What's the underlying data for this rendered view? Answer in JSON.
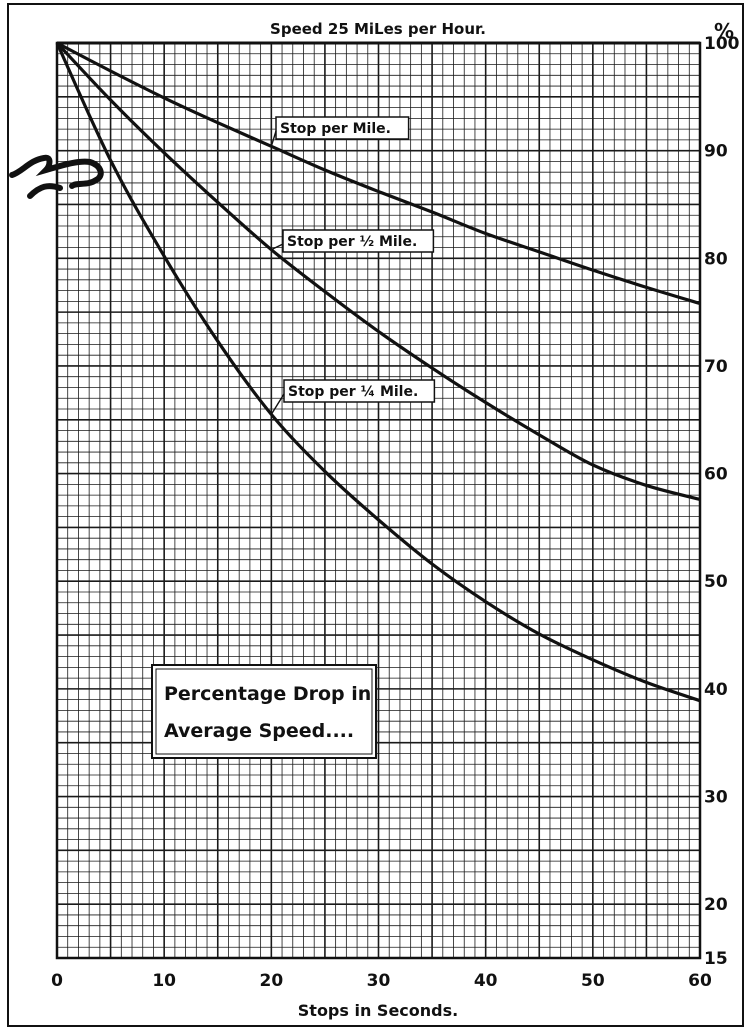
{
  "chart_data": {
    "type": "line",
    "title": "Speed 25 MiLes per Hour.",
    "xlabel": "Stops in Seconds.",
    "ylabel": "%",
    "xlim": [
      0,
      60
    ],
    "ylim": [
      15,
      100
    ],
    "x_ticks": [
      0,
      10,
      20,
      30,
      40,
      50,
      60
    ],
    "y_ticks": [
      15,
      20,
      30,
      40,
      50,
      60,
      70,
      80,
      90,
      100
    ],
    "y_axis_position": "right",
    "grid": true,
    "annotation": [
      "Percentage Drop in",
      "Average Speed...."
    ],
    "x": [
      0,
      5,
      10,
      15,
      20,
      25,
      30,
      35,
      40,
      45,
      50,
      55,
      60
    ],
    "series": [
      {
        "name": "Stop per Mile.",
        "values": [
          100,
          97.4,
          94.9,
          92.6,
          90.4,
          88.2,
          86.2,
          84.3,
          82.3,
          80.6,
          78.9,
          77.3,
          75.8
        ]
      },
      {
        "name": "Stop per ½ Mile.",
        "values": [
          100,
          94.7,
          89.8,
          85.2,
          80.8,
          76.9,
          73.2,
          69.8,
          66.6,
          63.6,
          60.8,
          58.9,
          57.6
        ]
      },
      {
        "name": "Stop per ¼ Mile.",
        "values": [
          100,
          89.1,
          80.2,
          72.3,
          65.5,
          60.2,
          55.7,
          51.6,
          48.1,
          45.1,
          42.7,
          40.6,
          38.9
        ]
      }
    ],
    "line_color": "#111111",
    "grid_color": "#1a1a1a"
  }
}
